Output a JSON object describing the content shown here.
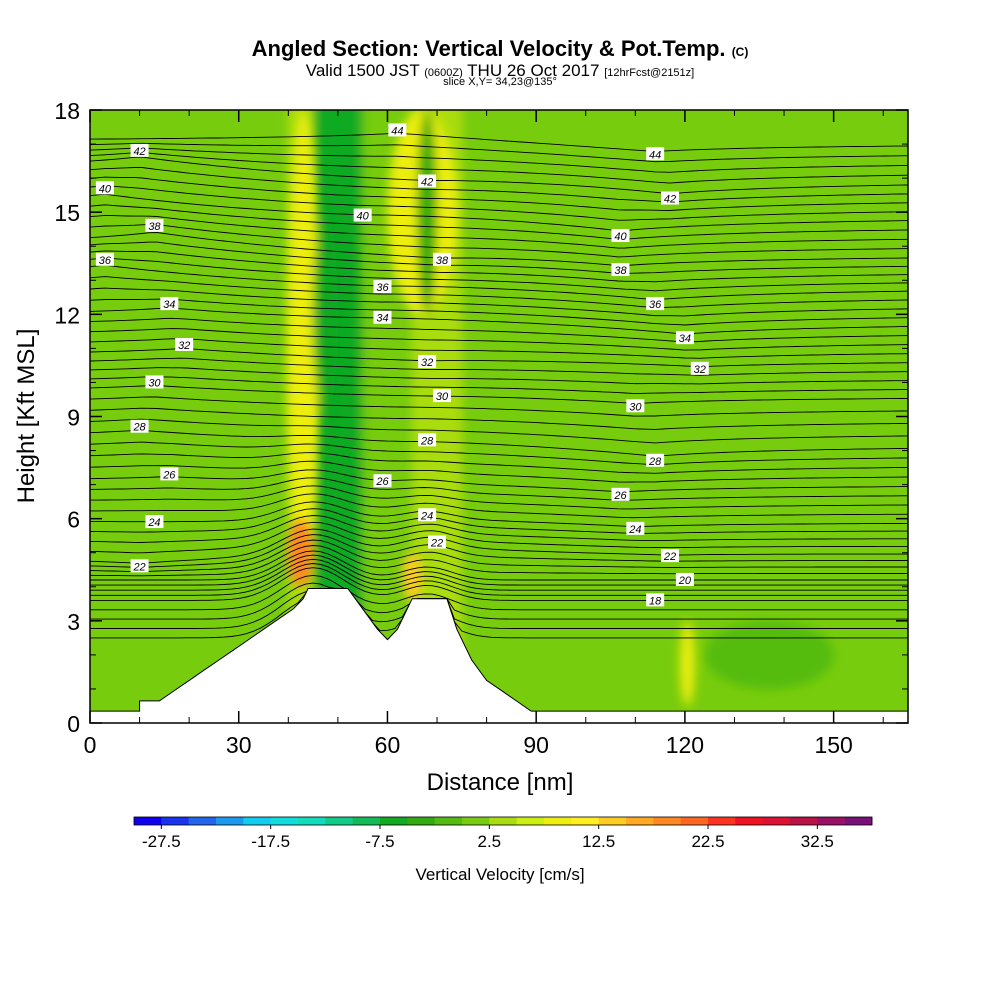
{
  "header": {
    "title_main": "Angled Section: Vertical Velocity & Pot.Temp.",
    "title_suffix": "(C)",
    "valid_prefix": "Valid 1500 JST",
    "valid_zulu": "(0600Z)",
    "valid_date": "THU 26 Oct 2017",
    "forecast": "[12hrFcst@2151z]",
    "slice": "slice X,Y= 34,23@135°"
  },
  "chart_data": {
    "type": "heatmap",
    "xlabel": "Distance [nm]",
    "ylabel": "Height [Kft MSL]",
    "xlim": [
      0,
      165
    ],
    "ylim": [
      0,
      18
    ],
    "x_ticks": [
      0,
      30,
      60,
      90,
      120,
      150
    ],
    "y_ticks": [
      0,
      3,
      6,
      9,
      12,
      15,
      18
    ],
    "field": "Vertical Velocity [cm/s]",
    "colorbar": {
      "label": "Vertical Velocity [cm/s]",
      "tick_labels": [
        "-27.5",
        "-17.5",
        "-7.5",
        "2.5",
        "12.5",
        "22.5",
        "32.5"
      ],
      "tick_values": [
        -27.5,
        -17.5,
        -7.5,
        2.5,
        12.5,
        22.5,
        32.5
      ],
      "bins": [
        -30,
        -27.5,
        -25,
        -22.5,
        -20,
        -17.5,
        -15,
        -12.5,
        -10,
        -7.5,
        -5,
        -2.5,
        0,
        2.5,
        5,
        7.5,
        10,
        12.5,
        15,
        17.5,
        20,
        22.5,
        25,
        27.5,
        30,
        32.5,
        35,
        37.5
      ],
      "colors": [
        "#1100ee",
        "#1a33ee",
        "#2266ee",
        "#1a99ee",
        "#11ccee",
        "#11dddd",
        "#11dcbb",
        "#11cc88",
        "#11bb55",
        "#11aa22",
        "#33aa11",
        "#55bb11",
        "#77cc11",
        "#aadd11",
        "#ccee11",
        "#eeee11",
        "#ffee22",
        "#ffcc22",
        "#ffaa22",
        "#ff8822",
        "#ff6622",
        "#ff3322",
        "#ee1122",
        "#dd1133",
        "#bb1144",
        "#991166",
        "#771177"
      ]
    },
    "background_field": [
      {
        "x": 0,
        "value": 1.2
      },
      {
        "x": 15,
        "value": 1.0
      },
      {
        "x": 30,
        "value": 0.8
      },
      {
        "x": 40,
        "value": 3.0
      },
      {
        "x": 45,
        "value": -6.0
      },
      {
        "x": 55,
        "value": 1.5
      },
      {
        "x": 65,
        "value": 4.0
      },
      {
        "x": 75,
        "value": 2.0
      },
      {
        "x": 90,
        "value": 1.0
      },
      {
        "x": 105,
        "value": 0.5
      },
      {
        "x": 120,
        "value": 2.0
      },
      {
        "x": 140,
        "value": 0.8
      },
      {
        "x": 165,
        "value": 1.0
      }
    ],
    "features": [
      {
        "x": [
          40,
          46
        ],
        "y": [
          4,
          18
        ],
        "value": 7.5
      },
      {
        "x": [
          45,
          50
        ],
        "y": [
          9,
          15
        ],
        "value": -7.5
      },
      {
        "x": [
          60,
          74
        ],
        "y": [
          12,
          18
        ],
        "value": 7.5
      },
      {
        "x": [
          66,
          70
        ],
        "y": [
          12,
          18
        ],
        "value": -5.0
      },
      {
        "x": [
          40,
          45
        ],
        "y": [
          4,
          6
        ],
        "value": 17.5
      },
      {
        "x": [
          63,
          67
        ],
        "y": [
          3.6,
          5
        ],
        "value": 12.5
      },
      {
        "x": [
          119,
          122
        ],
        "y": [
          0.5,
          3
        ],
        "value": 7.5
      },
      {
        "x": [
          124,
          150
        ],
        "y": [
          1,
          3
        ],
        "value": -2.5
      }
    ],
    "terrain": [
      {
        "x": 0,
        "y": 0.35
      },
      {
        "x": 10,
        "y": 0.35
      },
      {
        "x": 10,
        "y": 0.65
      },
      {
        "x": 14,
        "y": 0.65
      },
      {
        "x": 17,
        "y": 0.95
      },
      {
        "x": 20,
        "y": 1.25
      },
      {
        "x": 23,
        "y": 1.55
      },
      {
        "x": 26,
        "y": 1.85
      },
      {
        "x": 29,
        "y": 2.15
      },
      {
        "x": 32,
        "y": 2.45
      },
      {
        "x": 35,
        "y": 2.75
      },
      {
        "x": 38,
        "y": 3.05
      },
      {
        "x": 41,
        "y": 3.35
      },
      {
        "x": 43,
        "y": 3.65
      },
      {
        "x": 44,
        "y": 3.95
      },
      {
        "x": 52,
        "y": 3.95
      },
      {
        "x": 55,
        "y": 3.35
      },
      {
        "x": 58,
        "y": 2.75
      },
      {
        "x": 60,
        "y": 2.45
      },
      {
        "x": 62,
        "y": 2.75
      },
      {
        "x": 65,
        "y": 3.65
      },
      {
        "x": 72,
        "y": 3.65
      },
      {
        "x": 74,
        "y": 2.75
      },
      {
        "x": 77,
        "y": 1.85
      },
      {
        "x": 80,
        "y": 1.25
      },
      {
        "x": 83,
        "y": 0.95
      },
      {
        "x": 86,
        "y": 0.65
      },
      {
        "x": 89,
        "y": 0.35
      },
      {
        "x": 165,
        "y": 0.35
      }
    ],
    "theta_contour_labels": [
      {
        "value": 42,
        "x": 10,
        "y": 16.8
      },
      {
        "value": 40,
        "x": 3,
        "y": 15.7
      },
      {
        "value": 38,
        "x": 13,
        "y": 14.6
      },
      {
        "value": 36,
        "x": 3,
        "y": 13.6
      },
      {
        "value": 34,
        "x": 16,
        "y": 12.3
      },
      {
        "value": 32,
        "x": 19,
        "y": 11.1
      },
      {
        "value": 30,
        "x": 13,
        "y": 10.0
      },
      {
        "value": 28,
        "x": 10,
        "y": 8.7
      },
      {
        "value": 26,
        "x": 16,
        "y": 7.3
      },
      {
        "value": 24,
        "x": 13,
        "y": 5.9
      },
      {
        "value": 22,
        "x": 10,
        "y": 4.6
      },
      {
        "value": 44,
        "x": 62,
        "y": 17.4
      },
      {
        "value": 42,
        "x": 68,
        "y": 15.9
      },
      {
        "value": 40,
        "x": 55,
        "y": 14.9
      },
      {
        "value": 38,
        "x": 71,
        "y": 13.6
      },
      {
        "value": 36,
        "x": 59,
        "y": 12.8
      },
      {
        "value": 34,
        "x": 59,
        "y": 11.9
      },
      {
        "value": 32,
        "x": 68,
        "y": 10.6
      },
      {
        "value": 30,
        "x": 71,
        "y": 9.6
      },
      {
        "value": 28,
        "x": 68,
        "y": 8.3
      },
      {
        "value": 26,
        "x": 59,
        "y": 7.1
      },
      {
        "value": 24,
        "x": 68,
        "y": 6.1
      },
      {
        "value": 22,
        "x": 70,
        "y": 5.3
      },
      {
        "value": 44,
        "x": 114,
        "y": 16.7
      },
      {
        "value": 42,
        "x": 117,
        "y": 15.4
      },
      {
        "value": 40,
        "x": 107,
        "y": 14.3
      },
      {
        "value": 38,
        "x": 107,
        "y": 13.3
      },
      {
        "value": 36,
        "x": 114,
        "y": 12.3
      },
      {
        "value": 34,
        "x": 120,
        "y": 11.3
      },
      {
        "value": 32,
        "x": 123,
        "y": 10.4
      },
      {
        "value": 30,
        "x": 110,
        "y": 9.3
      },
      {
        "value": 28,
        "x": 114,
        "y": 7.7
      },
      {
        "value": 26,
        "x": 107,
        "y": 6.7
      },
      {
        "value": 24,
        "x": 110,
        "y": 5.7
      },
      {
        "value": 22,
        "x": 117,
        "y": 4.9
      },
      {
        "value": 20,
        "x": 120,
        "y": 4.2
      },
      {
        "value": 18,
        "x": 114,
        "y": 3.6
      }
    ],
    "grid": false
  }
}
